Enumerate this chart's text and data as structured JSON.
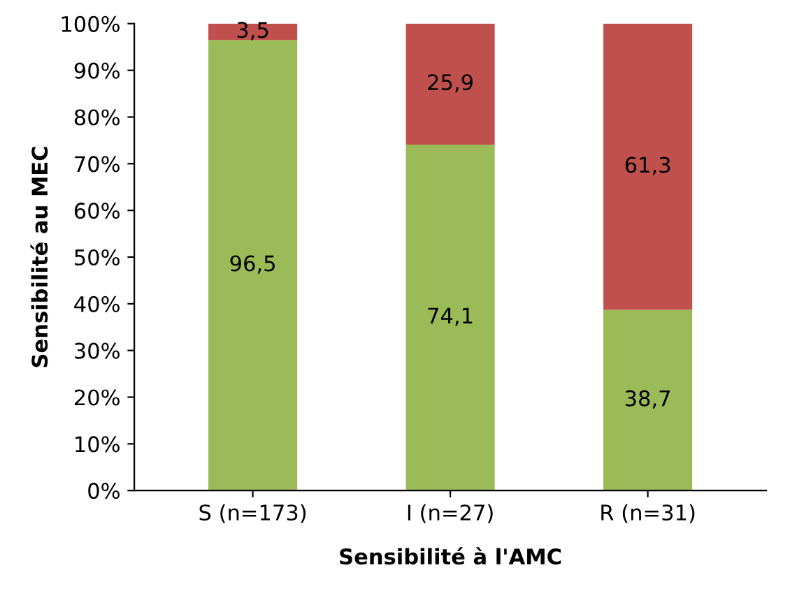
{
  "chart_data": {
    "type": "bar",
    "stacked": true,
    "xlabel": "Sensibilité à l'AMC",
    "ylabel": "Sensibilité au MEC",
    "categories": [
      "S (n=173)",
      "I (n=27)",
      "R (n=31)"
    ],
    "series": [
      {
        "color": "#9bbb59",
        "values": [
          96.5,
          74.1,
          38.7
        ],
        "value_labels": [
          "96,5",
          "74,1",
          "38,7"
        ]
      },
      {
        "color": "#c0504d",
        "values": [
          3.5,
          25.9,
          61.3
        ],
        "value_labels": [
          "3,5",
          "25,9",
          "61,3"
        ]
      }
    ],
    "ylim": [
      0,
      100
    ],
    "yticks": [
      {
        "value": 0,
        "label": "0%"
      },
      {
        "value": 10,
        "label": "10%"
      },
      {
        "value": 20,
        "label": "20%"
      },
      {
        "value": 30,
        "label": "30%"
      },
      {
        "value": 40,
        "label": "40%"
      },
      {
        "value": 50,
        "label": "50%"
      },
      {
        "value": 60,
        "label": "60%"
      },
      {
        "value": 70,
        "label": "70%"
      },
      {
        "value": 80,
        "label": "80%"
      },
      {
        "value": 90,
        "label": "90%"
      },
      {
        "value": 100,
        "label": "100%"
      }
    ],
    "grid": false,
    "legend": false
  }
}
